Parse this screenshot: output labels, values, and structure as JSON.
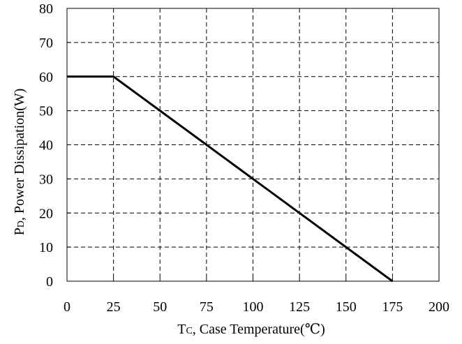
{
  "chart_data": {
    "type": "line",
    "title": "",
    "xlabel": {
      "main": "T",
      "sub": "C",
      "rest": ", Case Temperature(℃)"
    },
    "ylabel": {
      "main": "P",
      "sub": "D",
      "rest": ", Power Dissipation(W)"
    },
    "xlim": [
      0,
      200
    ],
    "ylim": [
      0,
      80
    ],
    "xticks": [
      0,
      25,
      50,
      75,
      100,
      125,
      150,
      175,
      200
    ],
    "yticks": [
      0,
      10,
      20,
      30,
      40,
      50,
      60,
      70,
      80
    ],
    "xtick_labels": [
      "0",
      "25",
      "50",
      "75",
      "100",
      "125",
      "150",
      "175",
      "200"
    ],
    "ytick_labels": [
      "0",
      "10",
      "20",
      "30",
      "40",
      "50",
      "60",
      "70",
      "80"
    ],
    "grid": true,
    "grid_style": "dashed",
    "series": [
      {
        "x": [
          0,
          25,
          175
        ],
        "y": [
          60,
          60,
          0
        ],
        "color": "#000000"
      }
    ]
  }
}
